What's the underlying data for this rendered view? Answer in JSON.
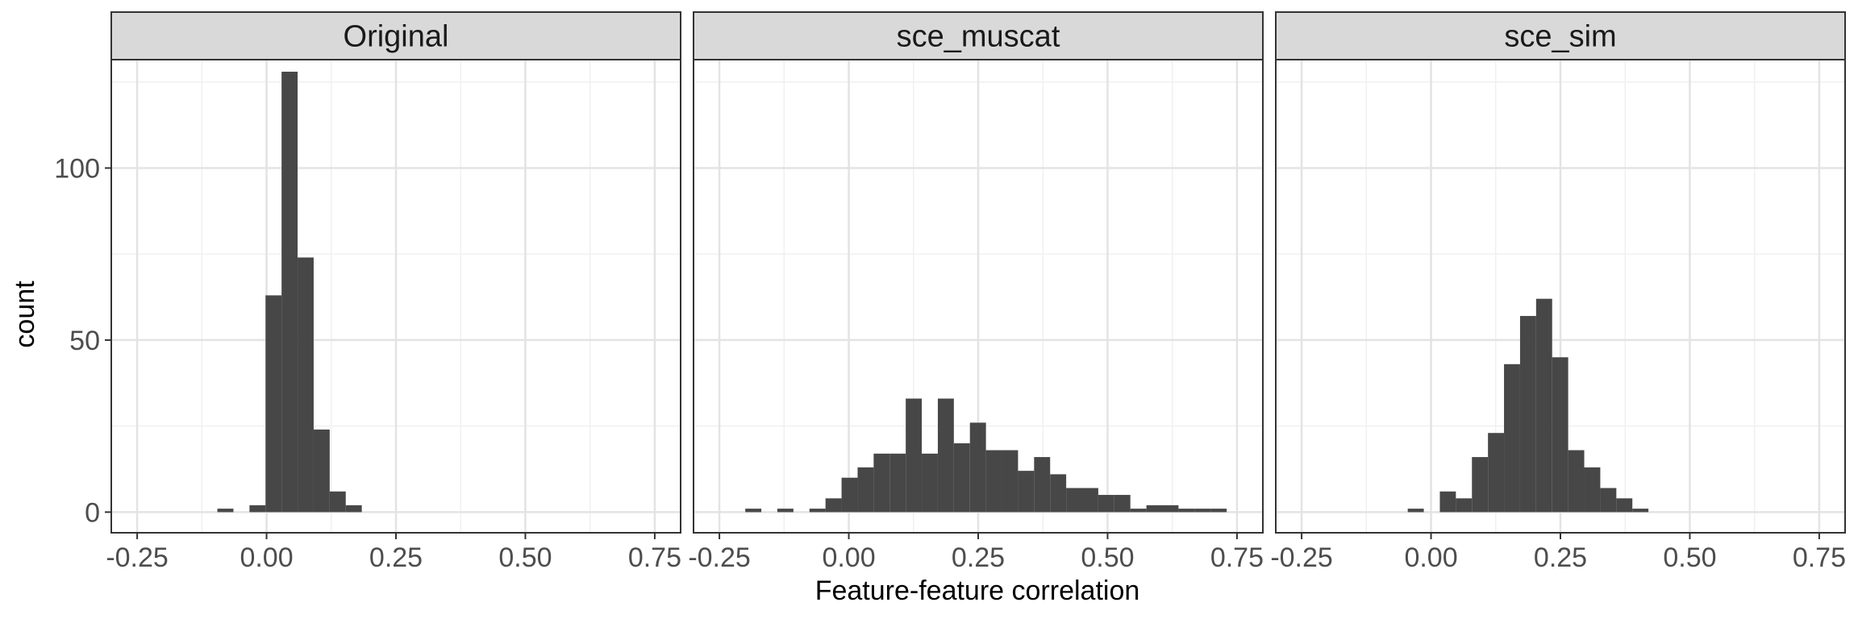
{
  "chart_data": {
    "type": "bar",
    "facet": "columns",
    "xlabel": "Feature-feature correlation",
    "ylabel": "count",
    "xlim": [
      -0.25,
      0.75
    ],
    "ylim": [
      0,
      130
    ],
    "x_ticks": [
      -0.25,
      0.0,
      0.25,
      0.5,
      0.75
    ],
    "x_tick_labels": [
      "-0.25",
      "0.00",
      "0.25",
      "0.50",
      "0.75"
    ],
    "y_ticks": [
      0,
      50,
      100
    ],
    "y_tick_labels": [
      "0",
      "50",
      "100"
    ],
    "bin_width": 0.031,
    "grid": true,
    "bar_color": "#474747",
    "panels": [
      {
        "name": "Original",
        "bins": [
          {
            "x": -0.095,
            "count": 1
          },
          {
            "x": -0.064,
            "count": 0
          },
          {
            "x": -0.033,
            "count": 2
          },
          {
            "x": -0.002,
            "count": 63
          },
          {
            "x": 0.029,
            "count": 128
          },
          {
            "x": 0.06,
            "count": 74
          },
          {
            "x": 0.091,
            "count": 24
          },
          {
            "x": 0.122,
            "count": 6
          },
          {
            "x": 0.153,
            "count": 2
          }
        ]
      },
      {
        "name": "sce_muscat",
        "bins": [
          {
            "x": -0.2,
            "count": 1
          },
          {
            "x": -0.169,
            "count": 0
          },
          {
            "x": -0.138,
            "count": 1
          },
          {
            "x": -0.107,
            "count": 0
          },
          {
            "x": -0.076,
            "count": 1
          },
          {
            "x": -0.045,
            "count": 4
          },
          {
            "x": -0.014,
            "count": 10
          },
          {
            "x": 0.017,
            "count": 13
          },
          {
            "x": 0.048,
            "count": 17
          },
          {
            "x": 0.079,
            "count": 17
          },
          {
            "x": 0.11,
            "count": 33
          },
          {
            "x": 0.141,
            "count": 17
          },
          {
            "x": 0.172,
            "count": 33
          },
          {
            "x": 0.203,
            "count": 20
          },
          {
            "x": 0.234,
            "count": 26
          },
          {
            "x": 0.265,
            "count": 18
          },
          {
            "x": 0.296,
            "count": 18
          },
          {
            "x": 0.327,
            "count": 12
          },
          {
            "x": 0.358,
            "count": 16
          },
          {
            "x": 0.389,
            "count": 11
          },
          {
            "x": 0.42,
            "count": 7
          },
          {
            "x": 0.451,
            "count": 7
          },
          {
            "x": 0.482,
            "count": 5
          },
          {
            "x": 0.513,
            "count": 5
          },
          {
            "x": 0.544,
            "count": 1
          },
          {
            "x": 0.575,
            "count": 2
          },
          {
            "x": 0.606,
            "count": 2
          },
          {
            "x": 0.637,
            "count": 1
          },
          {
            "x": 0.668,
            "count": 1
          },
          {
            "x": 0.699,
            "count": 1
          }
        ]
      },
      {
        "name": "sce_sim",
        "bins": [
          {
            "x": -0.045,
            "count": 1
          },
          {
            "x": -0.014,
            "count": 0
          },
          {
            "x": 0.017,
            "count": 6
          },
          {
            "x": 0.048,
            "count": 4
          },
          {
            "x": 0.079,
            "count": 16
          },
          {
            "x": 0.11,
            "count": 23
          },
          {
            "x": 0.141,
            "count": 43
          },
          {
            "x": 0.172,
            "count": 57
          },
          {
            "x": 0.203,
            "count": 62
          },
          {
            "x": 0.234,
            "count": 45
          },
          {
            "x": 0.265,
            "count": 18
          },
          {
            "x": 0.296,
            "count": 13
          },
          {
            "x": 0.327,
            "count": 7
          },
          {
            "x": 0.358,
            "count": 4
          },
          {
            "x": 0.389,
            "count": 1
          }
        ]
      }
    ]
  }
}
